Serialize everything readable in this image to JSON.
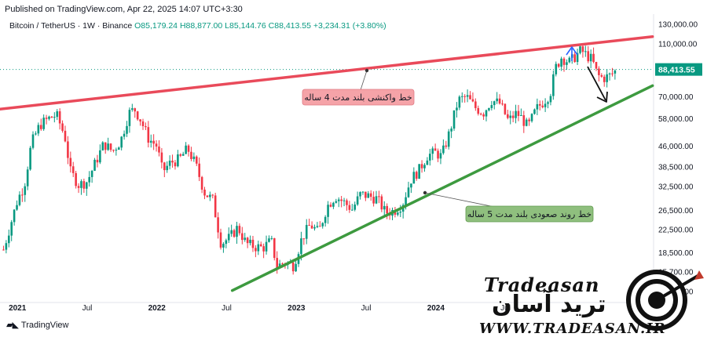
{
  "header": {
    "published": "Published on TradingView.com, Apr 22, 2025 14:07 UTC+3:30"
  },
  "ohlc": {
    "symbol": "Bitcoin / TetherUS · 1W · Binance",
    "open": "O85,179.24",
    "high": "H88,877.00",
    "low": "L85,144.76",
    "close": "C88,413.55",
    "change": "+3,234.31 (+3.80%)"
  },
  "footer": {
    "brand": "TradingView"
  },
  "watermark": {
    "en": "Tradeasan",
    "fa": "ترید آسان",
    "url": "WWW.TRADEASAN.IR"
  },
  "colors": {
    "up": "#089981",
    "down": "#f23645",
    "resistance": "#e94a5a",
    "support": "#3d9a3f",
    "price": "#089981"
  },
  "chart_data": {
    "type": "candlestick",
    "y_scale": "log",
    "ylim": [
      13500,
      135000
    ],
    "y_ticks": [
      {
        "value": 130000,
        "label": "130,000.00"
      },
      {
        "value": 110000,
        "label": "110,000.00"
      },
      {
        "value": 70000,
        "label": "70,000.00"
      },
      {
        "value": 58000,
        "label": "58,000.00"
      },
      {
        "value": 46000,
        "label": "46,000.00"
      },
      {
        "value": 38500,
        "label": "38,500.00"
      },
      {
        "value": 32500,
        "label": "32,500.00"
      },
      {
        "value": 26500,
        "label": "26,500.00"
      },
      {
        "value": 22500,
        "label": "22,500.00"
      },
      {
        "value": 18500,
        "label": "18,500.00"
      },
      {
        "value": 15700,
        "label": "15,700.00"
      },
      {
        "value": 13300,
        "label": "13,300.00"
      }
    ],
    "x_ticks": [
      "2021",
      "Jul",
      "2022",
      "Jul",
      "2023",
      "Jul",
      "2024",
      "Jul"
    ],
    "last_price": {
      "value": 88413.55,
      "label": "88,413.55"
    },
    "trendlines": [
      {
        "name": "resistance",
        "label": "خط واکنشی بلند مدت 4 ساله",
        "from": [
          "2020-10-01",
          62000
        ],
        "to": [
          "2025-07-20",
          117000
        ]
      },
      {
        "name": "support",
        "label": "خط روند صعودی بلند مدت 5 ساله",
        "from": [
          "2022-07-15",
          13400
        ],
        "to": [
          "2025-07-20",
          77000
        ]
      }
    ],
    "weekly_close": [
      [
        2020.9,
        19000
      ],
      [
        2021.0,
        29000
      ],
      [
        2021.05,
        33000
      ],
      [
        2021.1,
        47000
      ],
      [
        2021.16,
        55000
      ],
      [
        2021.22,
        58000
      ],
      [
        2021.28,
        60000
      ],
      [
        2021.34,
        50000
      ],
      [
        2021.38,
        37000
      ],
      [
        2021.44,
        33000
      ],
      [
        2021.5,
        34000
      ],
      [
        2021.56,
        40000
      ],
      [
        2021.62,
        47000
      ],
      [
        2021.68,
        44000
      ],
      [
        2021.74,
        48000
      ],
      [
        2021.8,
        61000
      ],
      [
        2021.84,
        63000
      ],
      [
        2021.88,
        58000
      ],
      [
        2021.94,
        49000
      ],
      [
        2022.0,
        46000
      ],
      [
        2022.04,
        37000
      ],
      [
        2022.1,
        40000
      ],
      [
        2022.16,
        41000
      ],
      [
        2022.22,
        45000
      ],
      [
        2022.28,
        39000
      ],
      [
        2022.34,
        31000
      ],
      [
        2022.4,
        29000
      ],
      [
        2022.46,
        20000
      ],
      [
        2022.52,
        21000
      ],
      [
        2022.58,
        23000
      ],
      [
        2022.64,
        20000
      ],
      [
        2022.7,
        19500
      ],
      [
        2022.76,
        19300
      ],
      [
        2022.82,
        20500
      ],
      [
        2022.86,
        16500
      ],
      [
        2022.92,
        17000
      ],
      [
        2022.98,
        16600
      ],
      [
        2023.04,
        21000
      ],
      [
        2023.1,
        23500
      ],
      [
        2023.16,
        22000
      ],
      [
        2023.22,
        27500
      ],
      [
        2023.28,
        30000
      ],
      [
        2023.34,
        28500
      ],
      [
        2023.4,
        26800
      ],
      [
        2023.46,
        30500
      ],
      [
        2023.52,
        30000
      ],
      [
        2023.58,
        29300
      ],
      [
        2023.64,
        26000
      ],
      [
        2023.7,
        26500
      ],
      [
        2023.76,
        28000
      ],
      [
        2023.82,
        34500
      ],
      [
        2023.88,
        37500
      ],
      [
        2023.94,
        42500
      ],
      [
        2024.0,
        43500
      ],
      [
        2024.04,
        42000
      ],
      [
        2024.1,
        52000
      ],
      [
        2024.16,
        68000
      ],
      [
        2024.22,
        70000
      ],
      [
        2024.28,
        64000
      ],
      [
        2024.34,
        61000
      ],
      [
        2024.4,
        68000
      ],
      [
        2024.46,
        66000
      ],
      [
        2024.52,
        57000
      ],
      [
        2024.58,
        61000
      ],
      [
        2024.62,
        58000
      ],
      [
        2024.66,
        54000
      ],
      [
        2024.72,
        63000
      ],
      [
        2024.78,
        68000
      ],
      [
        2024.82,
        72000
      ],
      [
        2024.86,
        90000
      ],
      [
        2024.9,
        98000
      ],
      [
        2024.96,
        94000
      ],
      [
        2025.0,
        99000
      ],
      [
        2025.04,
        104000
      ],
      [
        2025.08,
        100000
      ],
      [
        2025.12,
        96000
      ],
      [
        2025.16,
        84000
      ],
      [
        2025.2,
        82000
      ],
      [
        2025.25,
        84000
      ],
      [
        2025.3,
        88413
      ]
    ]
  }
}
